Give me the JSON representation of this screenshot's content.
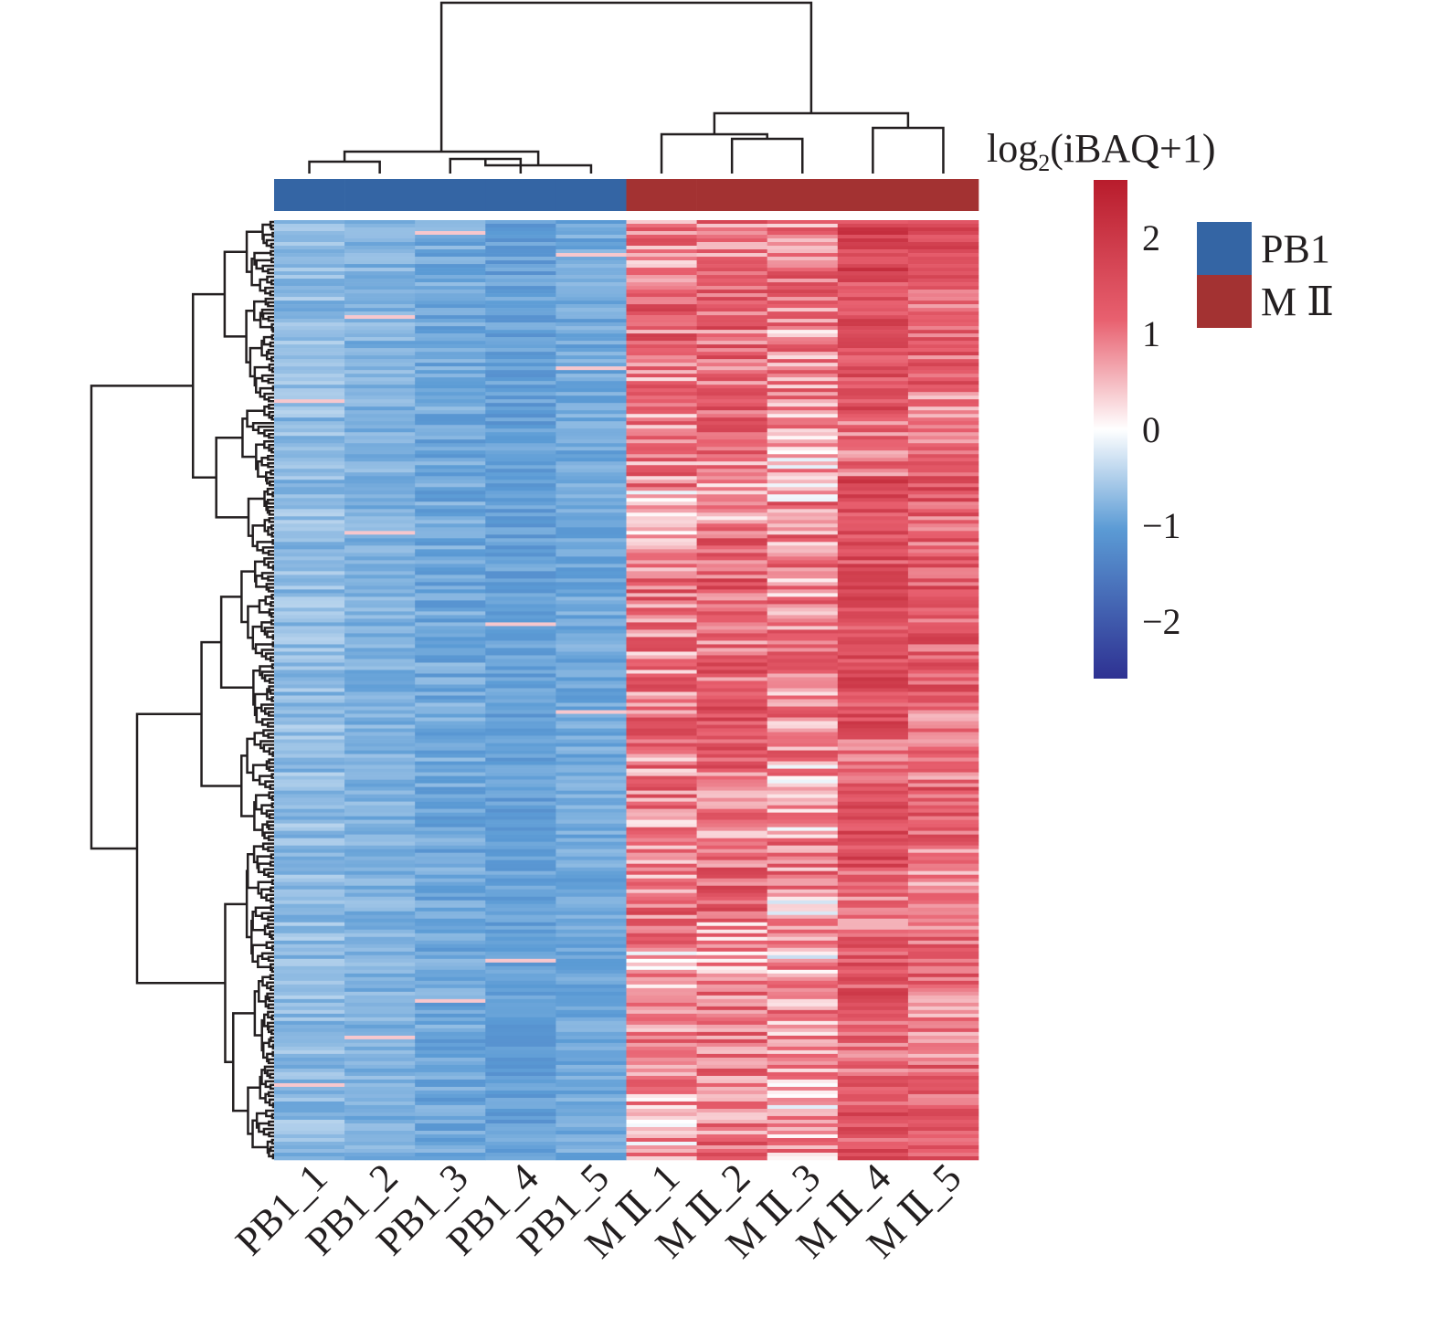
{
  "chart_data": {
    "type": "heatmap",
    "title": "",
    "colorbar": {
      "title_main": "log",
      "title_sub": "2",
      "title_rest": "(iBAQ+1)",
      "ticks": [
        2,
        1,
        0,
        -1,
        -2
      ],
      "tick_labels": [
        "2",
        "1",
        "0",
        "−1",
        "−2"
      ],
      "range": [
        -2.6,
        2.6
      ],
      "colors": {
        "low": "#2e3192",
        "mid_low": "#5b9bd5",
        "mid": "#ffffff",
        "mid_high": "#e8606f",
        "high": "#b81c2c"
      }
    },
    "columns": [
      "PB1_1",
      "PB1_2",
      "PB1_3",
      "PB1_4",
      "PB1_5",
      "MⅡ_1",
      "MⅡ_2",
      "MⅡ_3",
      "MⅡ_4",
      "MⅡ_5"
    ],
    "column_labels": [
      "PB1_1",
      "PB1_2",
      "PB1_3",
      "PB1_4",
      "PB1_5",
      "M Ⅱ_1",
      "M Ⅱ_2",
      "M Ⅱ_3",
      "M Ⅱ_4",
      "M Ⅱ_5"
    ],
    "column_groups": [
      "PB1",
      "PB1",
      "PB1",
      "PB1",
      "PB1",
      "MⅡ",
      "MⅡ",
      "MⅡ",
      "MⅡ",
      "MⅡ"
    ],
    "group_legend": [
      {
        "name": "PB1",
        "label": "PB1",
        "color": "#3465a4"
      },
      {
        "name": "MⅡ",
        "label": "M Ⅱ",
        "color": "#a33232"
      }
    ],
    "column_means_approx": [
      -0.7,
      -0.8,
      -0.9,
      -1.0,
      -0.9,
      0.8,
      1.0,
      0.7,
      1.3,
      1.1
    ],
    "row_count_approx": 700,
    "column_dendrogram": "((((PB1_1,PB1_2),((PB1_3,PB1_4),PB1_5))),((MⅡ_1,(MⅡ_2,MⅡ_3)),(MⅡ_4,MⅡ_5)))",
    "row_dendrogram": true
  }
}
